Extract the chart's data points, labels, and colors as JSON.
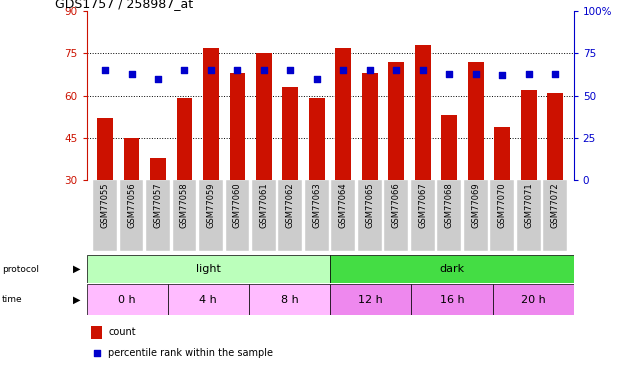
{
  "title": "GDS1757 / 258987_at",
  "samples": [
    "GSM77055",
    "GSM77056",
    "GSM77057",
    "GSM77058",
    "GSM77059",
    "GSM77060",
    "GSM77061",
    "GSM77062",
    "GSM77063",
    "GSM77064",
    "GSM77065",
    "GSM77066",
    "GSM77067",
    "GSM77068",
    "GSM77069",
    "GSM77070",
    "GSM77071",
    "GSM77072"
  ],
  "bar_values": [
    52,
    45,
    38,
    59,
    77,
    68,
    75,
    63,
    59,
    77,
    68,
    72,
    78,
    53,
    72,
    49,
    62,
    61
  ],
  "dot_values": [
    65,
    63,
    60,
    65,
    65,
    65,
    65,
    65,
    60,
    65,
    65,
    65,
    65,
    63,
    63,
    62,
    63,
    63
  ],
  "bar_color": "#cc1100",
  "dot_color": "#0000cc",
  "ylim_left": [
    30,
    90
  ],
  "ylim_right": [
    0,
    100
  ],
  "yticks_left": [
    30,
    45,
    60,
    75,
    90
  ],
  "yticks_right": [
    0,
    25,
    50,
    75,
    100
  ],
  "yticklabels_right": [
    "0",
    "25",
    "50",
    "75",
    "100%"
  ],
  "protocol_groups": [
    {
      "label": "light",
      "start": 0,
      "end": 9,
      "color": "#bbffbb"
    },
    {
      "label": "dark",
      "start": 9,
      "end": 18,
      "color": "#44dd44"
    }
  ],
  "time_groups": [
    {
      "label": "0 h",
      "start": 0,
      "end": 3,
      "color": "#ffbbff"
    },
    {
      "label": "4 h",
      "start": 3,
      "end": 6,
      "color": "#ffbbff"
    },
    {
      "label": "8 h",
      "start": 6,
      "end": 9,
      "color": "#ffbbff"
    },
    {
      "label": "12 h",
      "start": 9,
      "end": 12,
      "color": "#ee88ee"
    },
    {
      "label": "16 h",
      "start": 12,
      "end": 15,
      "color": "#ee88ee"
    },
    {
      "label": "20 h",
      "start": 15,
      "end": 18,
      "color": "#ee88ee"
    }
  ],
  "legend_items": [
    {
      "color": "#cc1100",
      "label": "count"
    },
    {
      "color": "#0000cc",
      "label": "percentile rank within the sample"
    }
  ],
  "bg_color": "#ffffff",
  "axis_left_color": "#cc1100",
  "axis_right_color": "#0000cc",
  "grid_color": "#000000",
  "xtick_bg_color": "#cccccc"
}
